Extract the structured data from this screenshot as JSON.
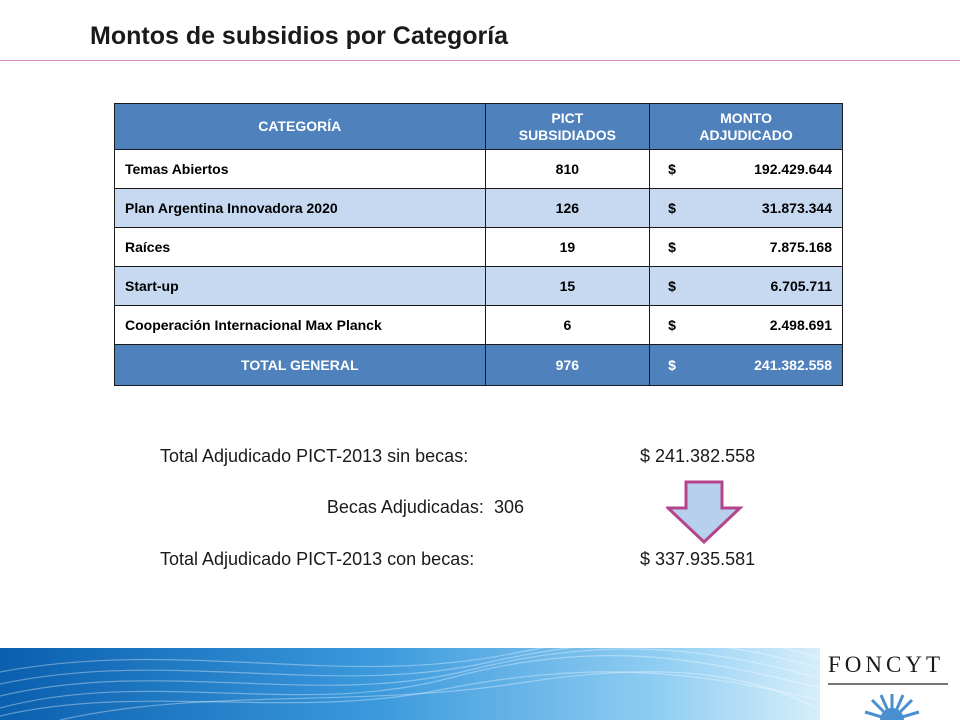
{
  "title": "Montos de subsidios por Categoría",
  "table": {
    "headers": {
      "category": "CATEGORÍA",
      "pict_line1": "PICT",
      "pict_line2": "SUBSIDIADOS",
      "monto_line1": "MONTO",
      "monto_line2": "ADJUDICADO"
    },
    "currency": "$",
    "rows": [
      {
        "category": "Temas Abiertos",
        "pict": "810",
        "amount": "192.429.644"
      },
      {
        "category": "Plan Argentina Innovadora 2020",
        "pict": "126",
        "amount": "31.873.344"
      },
      {
        "category": "Raíces",
        "pict": "19",
        "amount": "7.875.168"
      },
      {
        "category": "Start-up",
        "pict": "15",
        "amount": "6.705.711"
      },
      {
        "category": "Cooperación Internacional Max Planck",
        "pict": "6",
        "amount": "2.498.691"
      }
    ],
    "total": {
      "category": "TOTAL GENERAL",
      "pict": "976",
      "amount": "241.382.558"
    }
  },
  "summary": {
    "sin_becas_label": "Total Adjudicado PICT-2013 sin becas:",
    "sin_becas_value": "$ 241.382.558",
    "becas_label": "Becas Adjudicadas:",
    "becas_value": "306",
    "con_becas_label": "Total Adjudicado PICT-2013 con becas:",
    "con_becas_value": "$ 337.935.581"
  },
  "logo": {
    "text": "FONCYT"
  },
  "colors": {
    "header_blue": "#4f81bd",
    "row_light": "#c6d9f1",
    "accent_pink": "#d98cb8",
    "arrow_fill": "#b7d0ee",
    "arrow_stroke": "#b5458a"
  }
}
